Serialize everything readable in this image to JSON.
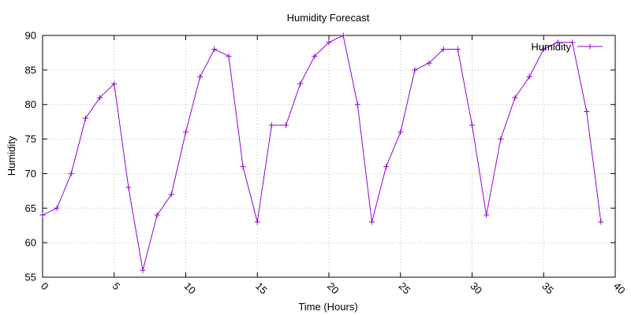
{
  "chart_data": {
    "type": "line",
    "title": "Humidity Forecast",
    "xlabel": "Time (Hours)",
    "ylabel": "Humidity",
    "xlim": [
      0,
      40
    ],
    "ylim": [
      55,
      90
    ],
    "x_ticks": [
      0,
      5,
      10,
      15,
      20,
      25,
      30,
      35,
      40
    ],
    "y_ticks": [
      55,
      60,
      65,
      70,
      75,
      80,
      85,
      90
    ],
    "grid": true,
    "legend_position": "top-right",
    "series": [
      {
        "name": "Humidity",
        "color": "#9400d3",
        "marker": "plus",
        "x": [
          0,
          1,
          2,
          3,
          4,
          5,
          6,
          7,
          8,
          9,
          10,
          11,
          12,
          13,
          14,
          15,
          16,
          17,
          18,
          19,
          20,
          21,
          22,
          23,
          24,
          25,
          26,
          27,
          28,
          29,
          30,
          31,
          32,
          33,
          34,
          35,
          36,
          37,
          38,
          39
        ],
        "y": [
          64,
          65,
          70,
          78,
          81,
          83,
          68,
          56,
          64,
          67,
          76,
          84,
          88,
          87,
          71,
          63,
          77,
          77,
          83,
          87,
          89,
          90,
          80,
          63,
          71,
          76,
          85,
          86,
          88,
          88,
          77,
          64,
          75,
          81,
          84,
          88,
          89,
          89,
          79,
          63
        ]
      }
    ]
  }
}
